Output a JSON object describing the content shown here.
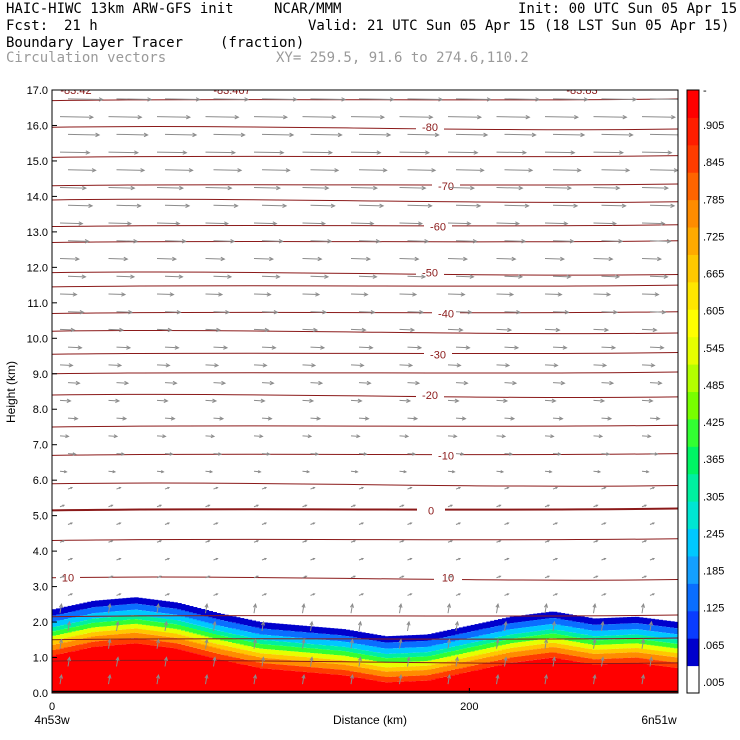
{
  "header": {
    "model": "HAIC-HIWC 13km ARW-GFS init",
    "org": "NCAR/MMM",
    "init": "Init: 00 UTC Sun 05 Apr 15",
    "fcst_label": "Fcst:",
    "fcst_value": "21 h",
    "valid": "Valid: 21 UTC Sun 05 Apr 15 (18 LST Sun 05 Apr 15)",
    "field": "Boundary Layer Tracer",
    "field_units": "(fraction)",
    "overlay": "Circulation vectors",
    "xy": "XY= 259.5, 91.6 to 274.6,110.2"
  },
  "colors": {
    "contour": "#8b1a1a",
    "vector": "#8c8c8c",
    "palette": [
      "#ffffff",
      "#0000cc",
      "#0a3cff",
      "#0a6eff",
      "#14a0ff",
      "#00c8ff",
      "#00e6d2",
      "#00f0a0",
      "#00f564",
      "#32ff32",
      "#78ff00",
      "#b4ff00",
      "#e6ff00",
      "#ffff00",
      "#ffe600",
      "#ffc800",
      "#ffaa00",
      "#ff8c00",
      "#ff6400",
      "#ff3c00",
      "#ff1e00",
      "#ff0000"
    ]
  },
  "chart_data": {
    "type": "heatmap",
    "ylabel": "Height (km)",
    "xlabel": "Distance (km)",
    "ylim": [
      0,
      17
    ],
    "yticks": [
      "0.0",
      "1.0",
      "2.0",
      "3.0",
      "4.0",
      "5.0",
      "6.0",
      "7.0",
      "8.0",
      "9.0",
      "10.0",
      "11.0",
      "12.0",
      "13.0",
      "14.0",
      "15.0",
      "16.0",
      "17.0"
    ],
    "xlim": [
      0,
      300
    ],
    "xticks": [
      "0",
      "200"
    ],
    "x_end_labels": [
      "4n53w",
      "6n51w"
    ],
    "colorbar": {
      "labels": [
        ".005",
        ".065",
        ".125",
        ".185",
        ".245",
        ".305",
        ".365",
        ".425",
        ".485",
        ".545",
        ".605",
        ".665",
        ".725",
        ".785",
        ".845",
        ".905",
        "-"
      ]
    },
    "boundary_layer_top_km": {
      "x": [
        0,
        20,
        40,
        60,
        80,
        100,
        120,
        140,
        160,
        180,
        200,
        220,
        240,
        260,
        280,
        300
      ],
      "y": [
        2.35,
        2.6,
        2.7,
        2.55,
        2.25,
        2.0,
        1.9,
        1.8,
        1.6,
        1.65,
        1.9,
        2.15,
        2.3,
        2.1,
        2.15,
        2.0
      ]
    },
    "contours": [
      {
        "label": "10",
        "height": 3.25
      },
      {
        "label": "0",
        "height": 5.15
      },
      {
        "label": "-10",
        "height": 6.7
      },
      {
        "label": "-20",
        "height": 8.4
      },
      {
        "label": "-30",
        "height": 9.55
      },
      {
        "label": "-40",
        "height": 10.7
      },
      {
        "label": "-50",
        "height": 11.85
      },
      {
        "label": "-60",
        "height": 13.15
      },
      {
        "label": "-70",
        "height": 14.3
      },
      {
        "label": "-80",
        "height": 15.95
      }
    ],
    "top_labels": [
      "-83.42",
      "-83.467",
      "-83.83"
    ]
  }
}
